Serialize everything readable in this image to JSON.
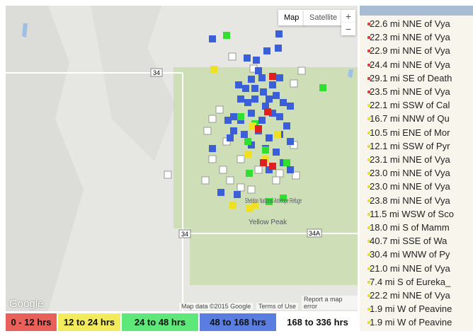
{
  "map": {
    "controls": {
      "map": "Map",
      "satellite": "Satellite",
      "zoom_in": "+",
      "zoom_out": "−"
    },
    "labels": {
      "road_34": "34",
      "road_34_east": "34",
      "road_34a": "34A",
      "refuge": "Sheldon National Antelope Refuge",
      "peak": "Yellow Peak"
    },
    "footer": {
      "logo": "Google",
      "map_data": "Map data ©2015 Google",
      "terms": "Terms of Use",
      "report": "Report a map error"
    }
  },
  "legend": [
    {
      "label": "0 - 12 hrs",
      "color": "#e8605a"
    },
    {
      "label": "12 to 24 hrs",
      "color": "#f2ec5c"
    },
    {
      "label": "24 to 48 hrs",
      "color": "#5ee87a"
    },
    {
      "label": "48 to 168 hrs",
      "color": "#5a7ee0"
    },
    {
      "label": "168 to 336 hrs",
      "color": "#ffffff"
    }
  ],
  "list": [
    {
      "text": "22.6 mi NNE of Vya",
      "color": "#e04040"
    },
    {
      "text": "22.3 mi NNE of Vya",
      "color": "#e04040"
    },
    {
      "text": "22.9 mi NNE of Vya",
      "color": "#e04040"
    },
    {
      "text": "24.4 mi NNE of Vya",
      "color": "#e04040"
    },
    {
      "text": "29.1 mi SE of Death",
      "color": "#e04040"
    },
    {
      "text": "23.5 mi NNE of Vya",
      "color": "#e04040"
    },
    {
      "text": "22.1 mi SSW of Cal",
      "color": "#e8dc40"
    },
    {
      "text": "16.7 mi NNW of Qu",
      "color": "#e8dc40"
    },
    {
      "text": "10.5 mi ENE of Mor",
      "color": "#e8dc40"
    },
    {
      "text": "12.1 mi SSW of Pyr",
      "color": "#e8dc40"
    },
    {
      "text": "23.1 mi NNE of Vya",
      "color": "#e8dc40"
    },
    {
      "text": "23.0 mi NNE of Vya",
      "color": "#e8dc40"
    },
    {
      "text": "23.0 mi NNE of Vya",
      "color": "#e8dc40"
    },
    {
      "text": "23.8 mi NNE of Vya",
      "color": "#e8dc40"
    },
    {
      "text": "11.5 mi WSW of Sco",
      "color": "#e8dc40"
    },
    {
      "text": "18.0 mi S of Mamm",
      "color": "#e8dc40"
    },
    {
      "text": "40.7 mi SSE of Wa",
      "color": "#e8dc40"
    },
    {
      "text": "30.4 mi WNW of Py",
      "color": "#e8dc40"
    },
    {
      "text": "21.0 mi NNE of Vya",
      "color": "#e8dc40"
    },
    {
      "text": "7.4 mi S of Eureka_",
      "color": "#e8dc40"
    },
    {
      "text": "22.2 mi NNE of Vya",
      "color": "#e8dc40"
    },
    {
      "text": "1.9 mi W of Peavine",
      "color": "#e8dc40"
    },
    {
      "text": "1.9 mi W of Peavine",
      "color": "#e8dc40"
    }
  ]
}
